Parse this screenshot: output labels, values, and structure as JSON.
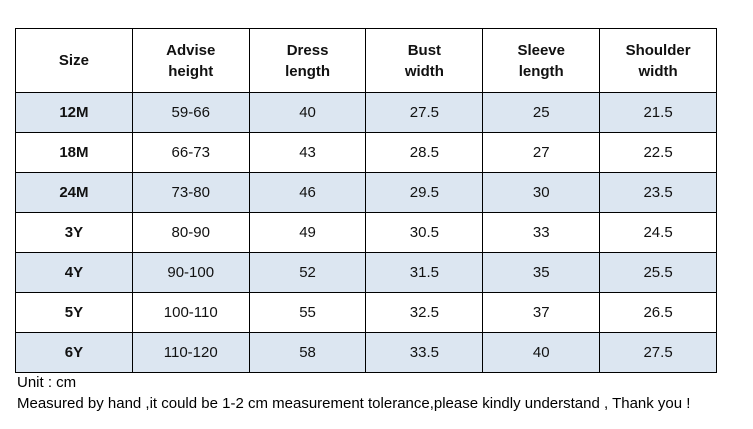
{
  "table": {
    "header": [
      [
        "Size"
      ],
      [
        "Advise",
        "height"
      ],
      [
        "Dress",
        "length"
      ],
      [
        "Bust",
        "width"
      ],
      [
        "Sleeve",
        "length"
      ],
      [
        "Shoulder",
        "width"
      ]
    ],
    "rows": [
      [
        "12M",
        "59-66",
        "40",
        "27.5",
        "25",
        "21.5"
      ],
      [
        "18M",
        "66-73",
        "43",
        "28.5",
        "27",
        "22.5"
      ],
      [
        "24M",
        "73-80",
        "46",
        "29.5",
        "30",
        "23.5"
      ],
      [
        "3Y",
        "80-90",
        "49",
        "30.5",
        "33",
        "24.5"
      ],
      [
        "4Y",
        "90-100",
        "52",
        "31.5",
        "35",
        "25.5"
      ],
      [
        "5Y",
        "100-110",
        "55",
        "32.5",
        "37",
        "26.5"
      ],
      [
        "6Y",
        "110-120",
        "58",
        "33.5",
        "40",
        "27.5"
      ]
    ]
  },
  "notes": [
    "Unit : cm",
    "Measured by hand ,it could be 1-2 cm measurement tolerance,please kindly understand , Thank you !"
  ]
}
